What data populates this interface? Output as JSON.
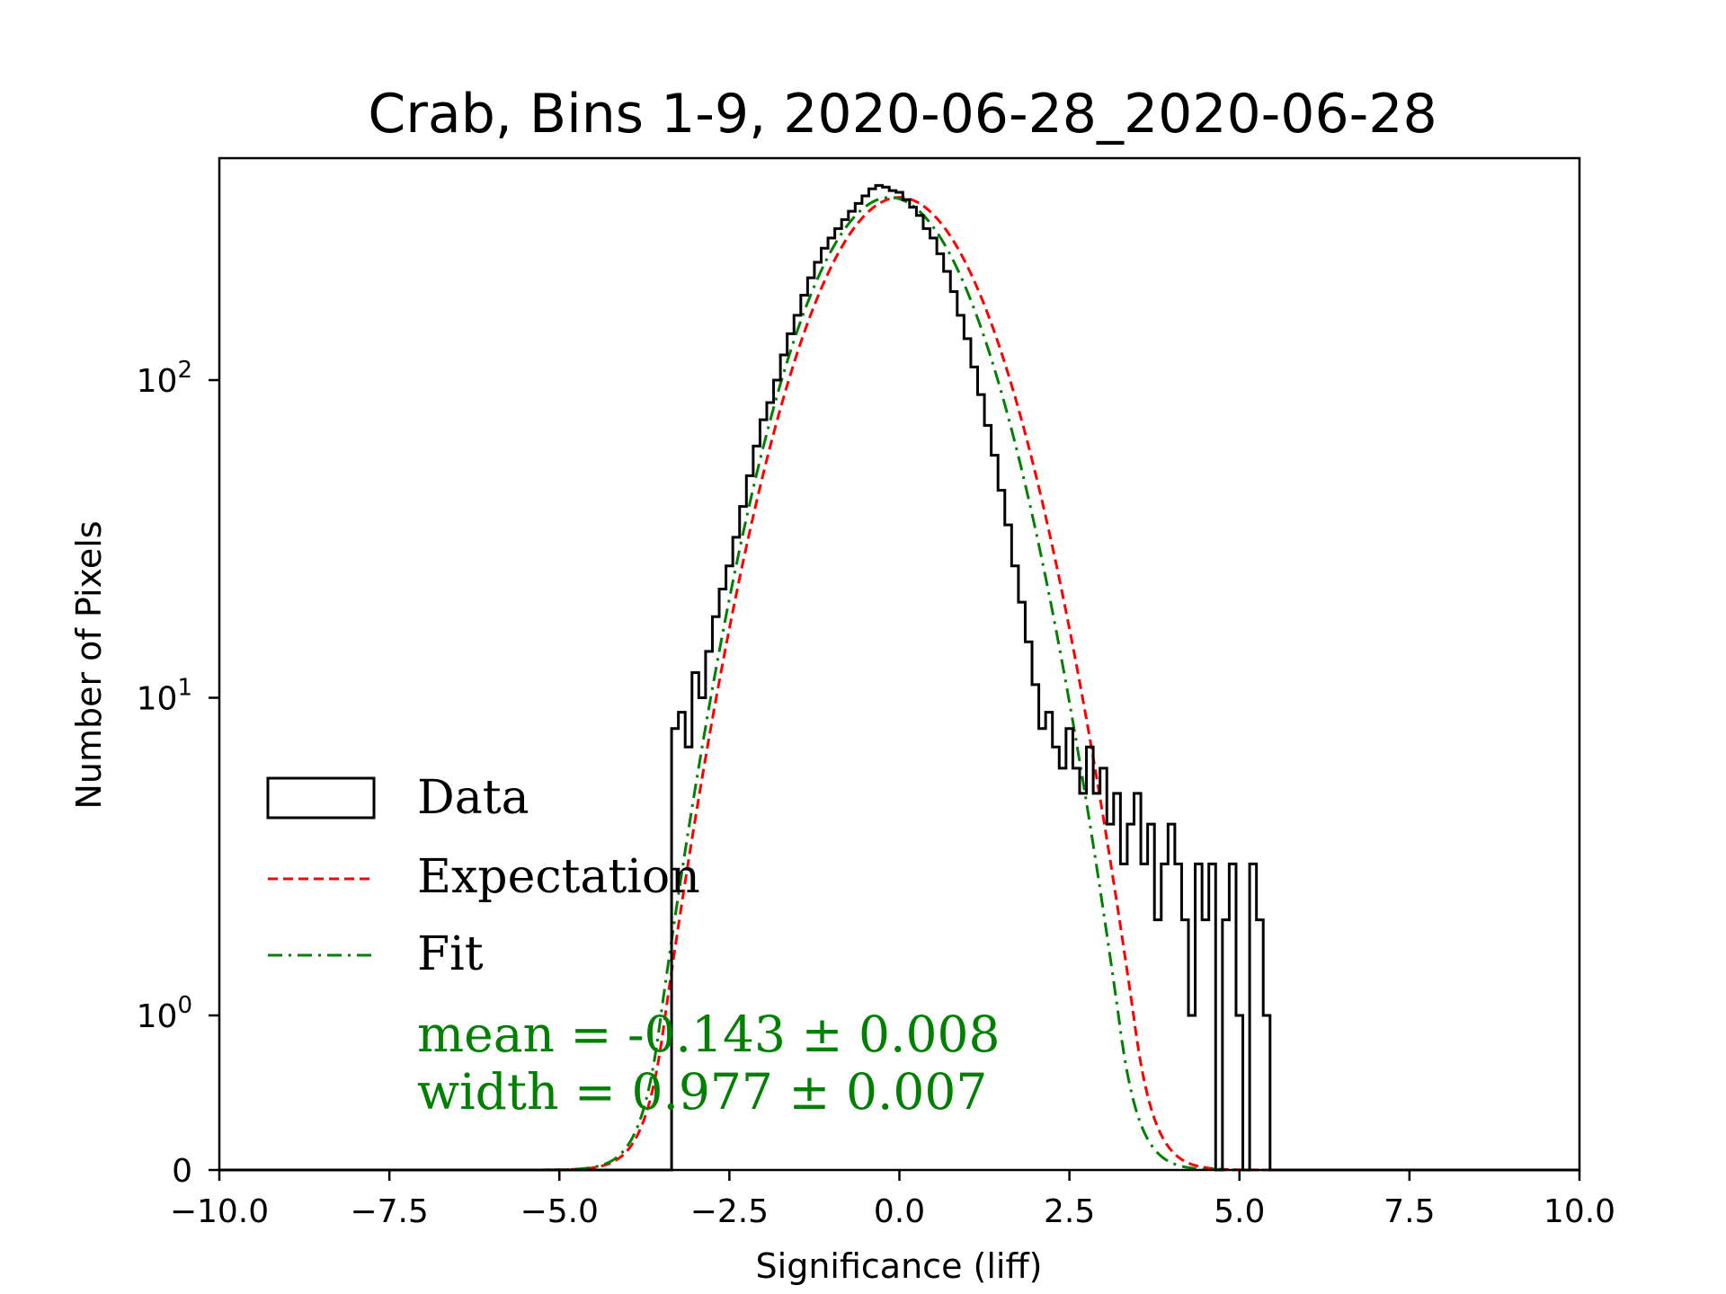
{
  "chart_data": {
    "type": "histogram",
    "title": "Crab, Bins 1-9, 2020-06-28_2020-06-28",
    "xlabel": "Significance (liff)",
    "ylabel": "Number of Pixels",
    "xlim": [
      -10,
      10
    ],
    "yscale": "symlog",
    "x_ticks": [
      {
        "value": -10,
        "label": "−10.0"
      },
      {
        "value": -7.5,
        "label": "−7.5"
      },
      {
        "value": -5,
        "label": "−5.0"
      },
      {
        "value": -2.5,
        "label": "−2.5"
      },
      {
        "value": 0,
        "label": "0.0"
      },
      {
        "value": 2.5,
        "label": "2.5"
      },
      {
        "value": 5,
        "label": "5.0"
      },
      {
        "value": 7.5,
        "label": "7.5"
      },
      {
        "value": 10,
        "label": "10.0"
      }
    ],
    "y_ticks": [
      {
        "value": 0,
        "base": "0",
        "exp": ""
      },
      {
        "value": 1,
        "base": "10",
        "exp": "0"
      },
      {
        "value": 10,
        "base": "10",
        "exp": "1"
      },
      {
        "value": 100,
        "base": "10",
        "exp": "2"
      }
    ],
    "legend": {
      "placement": "lower-left",
      "entries": [
        {
          "label": "Data",
          "style": "step",
          "color": "#000000"
        },
        {
          "label": "Expectation",
          "style": "dashed",
          "color": "#ff0000"
        },
        {
          "label": "Fit",
          "style": "dashdot",
          "color": "#008000"
        }
      ]
    },
    "annotation": {
      "mean_line": "mean = -0.143 ± 0.008",
      "width_line": "width = 0.977 ± 0.007",
      "color": "#008000"
    },
    "series": [
      {
        "name": "Data",
        "kind": "step",
        "color": "#000000",
        "x": [
          -3.3,
          -3.2,
          -3.1,
          -3.0,
          -2.9,
          -2.8,
          -2.7,
          -2.6,
          -2.5,
          -2.4,
          -2.3,
          -2.2,
          -2.1,
          -2.0,
          -1.9,
          -1.8,
          -1.7,
          -1.6,
          -1.5,
          -1.4,
          -1.3,
          -1.2,
          -1.1,
          -1.0,
          -0.9,
          -0.8,
          -0.7,
          -0.6,
          -0.5,
          -0.4,
          -0.3,
          -0.2,
          -0.1,
          0.0,
          0.1,
          0.2,
          0.3,
          0.4,
          0.5,
          0.6,
          0.7,
          0.8,
          0.9,
          1.0,
          1.1,
          1.2,
          1.3,
          1.4,
          1.5,
          1.6,
          1.7,
          1.8,
          1.9,
          2.0,
          2.1,
          2.2,
          2.3,
          2.4,
          2.5,
          2.6,
          2.7,
          2.8,
          2.9,
          3.0,
          3.1,
          3.2,
          3.3,
          3.4,
          3.5,
          3.6,
          3.7,
          3.8,
          3.9,
          4.0,
          4.1,
          4.2,
          4.3,
          4.4,
          4.5,
          4.6,
          4.7,
          4.8,
          4.9,
          5.0,
          5.1,
          5.2,
          5.3,
          5.4
        ],
        "y": [
          8,
          9,
          7,
          12,
          10,
          14,
          18,
          22,
          26,
          32,
          40,
          50,
          62,
          75,
          85,
          100,
          120,
          140,
          160,
          185,
          210,
          235,
          260,
          280,
          300,
          320,
          340,
          360,
          380,
          400,
          410,
          405,
          395,
          390,
          370,
          350,
          330,
          300,
          280,
          250,
          220,
          190,
          160,
          135,
          110,
          90,
          72,
          58,
          45,
          35,
          26,
          20,
          15,
          11,
          8,
          9,
          7,
          6,
          8,
          6,
          5,
          7,
          5,
          6,
          4,
          5,
          3,
          4,
          5,
          3,
          4,
          2,
          3,
          4,
          3,
          2,
          1,
          3,
          2,
          3,
          0,
          2,
          3,
          1,
          0,
          3,
          2,
          1
        ]
      },
      {
        "name": "Expectation",
        "kind": "gaussian",
        "color": "#ff0000",
        "mean": 0,
        "width": 1,
        "peak": 376
      },
      {
        "name": "Fit",
        "kind": "gaussian",
        "color": "#008000",
        "mean": -0.143,
        "width": 0.977,
        "peak": 376
      }
    ]
  }
}
